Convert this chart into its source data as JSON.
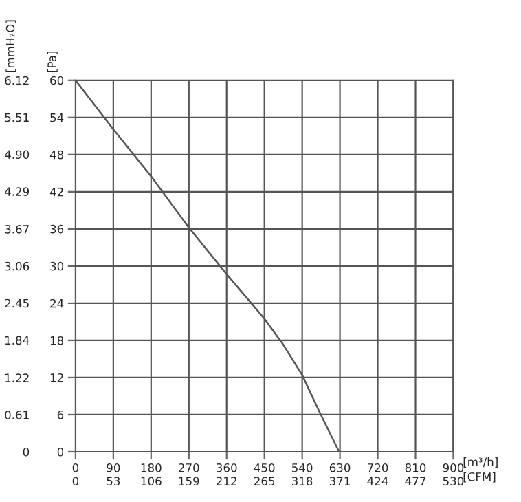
{
  "chart_data": {
    "type": "line",
    "x": [
      0,
      90,
      180,
      270,
      360,
      450,
      493,
      540,
      580,
      628
    ],
    "series": [
      {
        "color": "#555555",
        "values": [
          60,
          52.1,
          44.5,
          36.2,
          28.7,
          21.5,
          17.5,
          12.4,
          6.6,
          0
        ]
      }
    ],
    "xlim": [
      0,
      900
    ],
    "xticks": [
      0,
      90,
      180,
      270,
      360,
      450,
      540,
      630,
      720,
      810,
      900
    ],
    "ylim": [
      0,
      60
    ],
    "yticks": [
      0,
      6,
      12,
      18,
      24,
      30,
      36,
      42,
      48,
      54,
      60
    ],
    "x2lim": [
      0,
      530
    ],
    "x2ticks": [
      0,
      53,
      106,
      159,
      212,
      265,
      318,
      371,
      424,
      477,
      530
    ],
    "y2lim": [
      0,
      6.12
    ],
    "y2ticks": [
      0,
      0.61,
      1.22,
      1.84,
      2.45,
      3.06,
      3.67,
      4.29,
      {
        "value": 4.9,
        "label": "4.90"
      },
      5.51,
      6.12
    ],
    "xlabel": "[m³/h]",
    "x2label": "[CFM]",
    "ylabel": "[Pa]",
    "y2label": "[mmH₂O]",
    "grid": true,
    "legend": false,
    "marker": "none",
    "line_style": "solid"
  }
}
